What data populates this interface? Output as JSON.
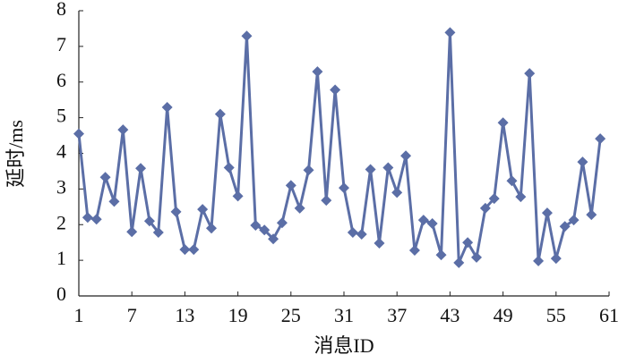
{
  "chart_data": {
    "type": "line",
    "x_label": "消息ID",
    "y_label": "延时/ms",
    "x": [
      1,
      2,
      3,
      4,
      5,
      6,
      7,
      8,
      9,
      10,
      11,
      12,
      13,
      14,
      15,
      16,
      17,
      18,
      19,
      20,
      21,
      22,
      23,
      24,
      25,
      26,
      27,
      28,
      29,
      30,
      31,
      32,
      33,
      34,
      35,
      36,
      37,
      38,
      39,
      40,
      41,
      42,
      43,
      44,
      45,
      46,
      47,
      48,
      49,
      50,
      51,
      52,
      53,
      54,
      55,
      56,
      57,
      58,
      59,
      60
    ],
    "series": [
      {
        "color": "#5b6ea6",
        "values": [
          4.55,
          2.2,
          2.15,
          3.33,
          2.65,
          4.66,
          1.8,
          3.58,
          2.1,
          1.78,
          5.29,
          2.36,
          1.3,
          1.3,
          2.43,
          1.9,
          5.1,
          3.6,
          2.8,
          7.29,
          1.98,
          1.85,
          1.6,
          2.05,
          3.1,
          2.46,
          3.53,
          6.29,
          2.68,
          5.78,
          3.03,
          1.78,
          1.73,
          3.55,
          1.48,
          3.6,
          2.9,
          3.93,
          1.28,
          2.13,
          2.03,
          1.15,
          7.39,
          0.93,
          1.5,
          1.08,
          2.46,
          2.73,
          4.86,
          3.23,
          2.78,
          6.24,
          0.98,
          2.33,
          1.05,
          1.95,
          2.13,
          3.76,
          2.28,
          4.41
        ]
      }
    ],
    "xlim": [
      1,
      61
    ],
    "xticks": [
      1,
      7,
      13,
      19,
      25,
      31,
      37,
      43,
      49,
      55,
      61
    ],
    "ylim": [
      0,
      8
    ],
    "yticks": [
      0,
      1,
      2,
      3,
      4,
      5,
      6,
      7,
      8
    ]
  }
}
